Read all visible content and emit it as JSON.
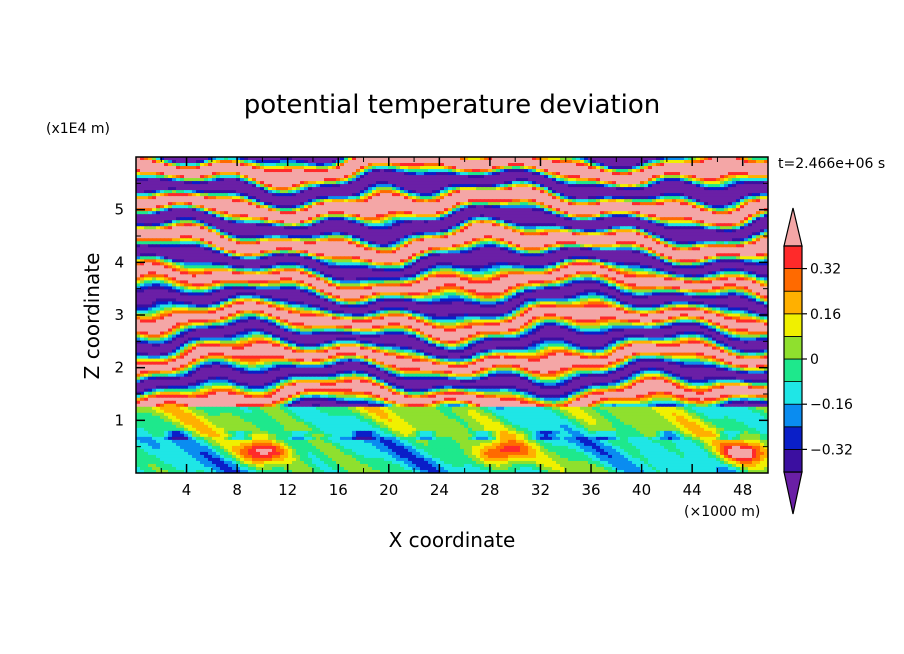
{
  "chart_data": {
    "type": "heatmap",
    "title": "potential temperature deviation",
    "xlabel": "X coordinate",
    "ylabel": "Z coordinate",
    "x_unit": "(×1000 m)",
    "y_unit": "(x1E4 m)",
    "time_label": "t=2.466e+06 s",
    "xlim": [
      0,
      50
    ],
    "ylim": [
      0,
      6
    ],
    "x_ticks": [
      4,
      8,
      12,
      16,
      20,
      24,
      28,
      32,
      36,
      40,
      44,
      48
    ],
    "y_ticks": [
      1,
      2,
      3,
      4,
      5
    ],
    "colorbar": {
      "levels": [
        -0.4,
        -0.32,
        -0.24,
        -0.16,
        -0.08,
        0,
        0.08,
        0.16,
        0.24,
        0.32,
        0.4
      ],
      "labels": [
        "0.32",
        "0.16",
        "0",
        "−0.16",
        "−0.32"
      ],
      "label_values": [
        0.32,
        0.16,
        0,
        -0.16,
        -0.32
      ],
      "colors": [
        "#6a1fa6",
        "#3b0fa0",
        "#0a1fc8",
        "#0a8cf0",
        "#1fe6e6",
        "#1ee88c",
        "#8fe02e",
        "#f0f000",
        "#ffb000",
        "#ff6a00",
        "#ff2a2a",
        "#f4a6a6"
      ]
    }
  }
}
